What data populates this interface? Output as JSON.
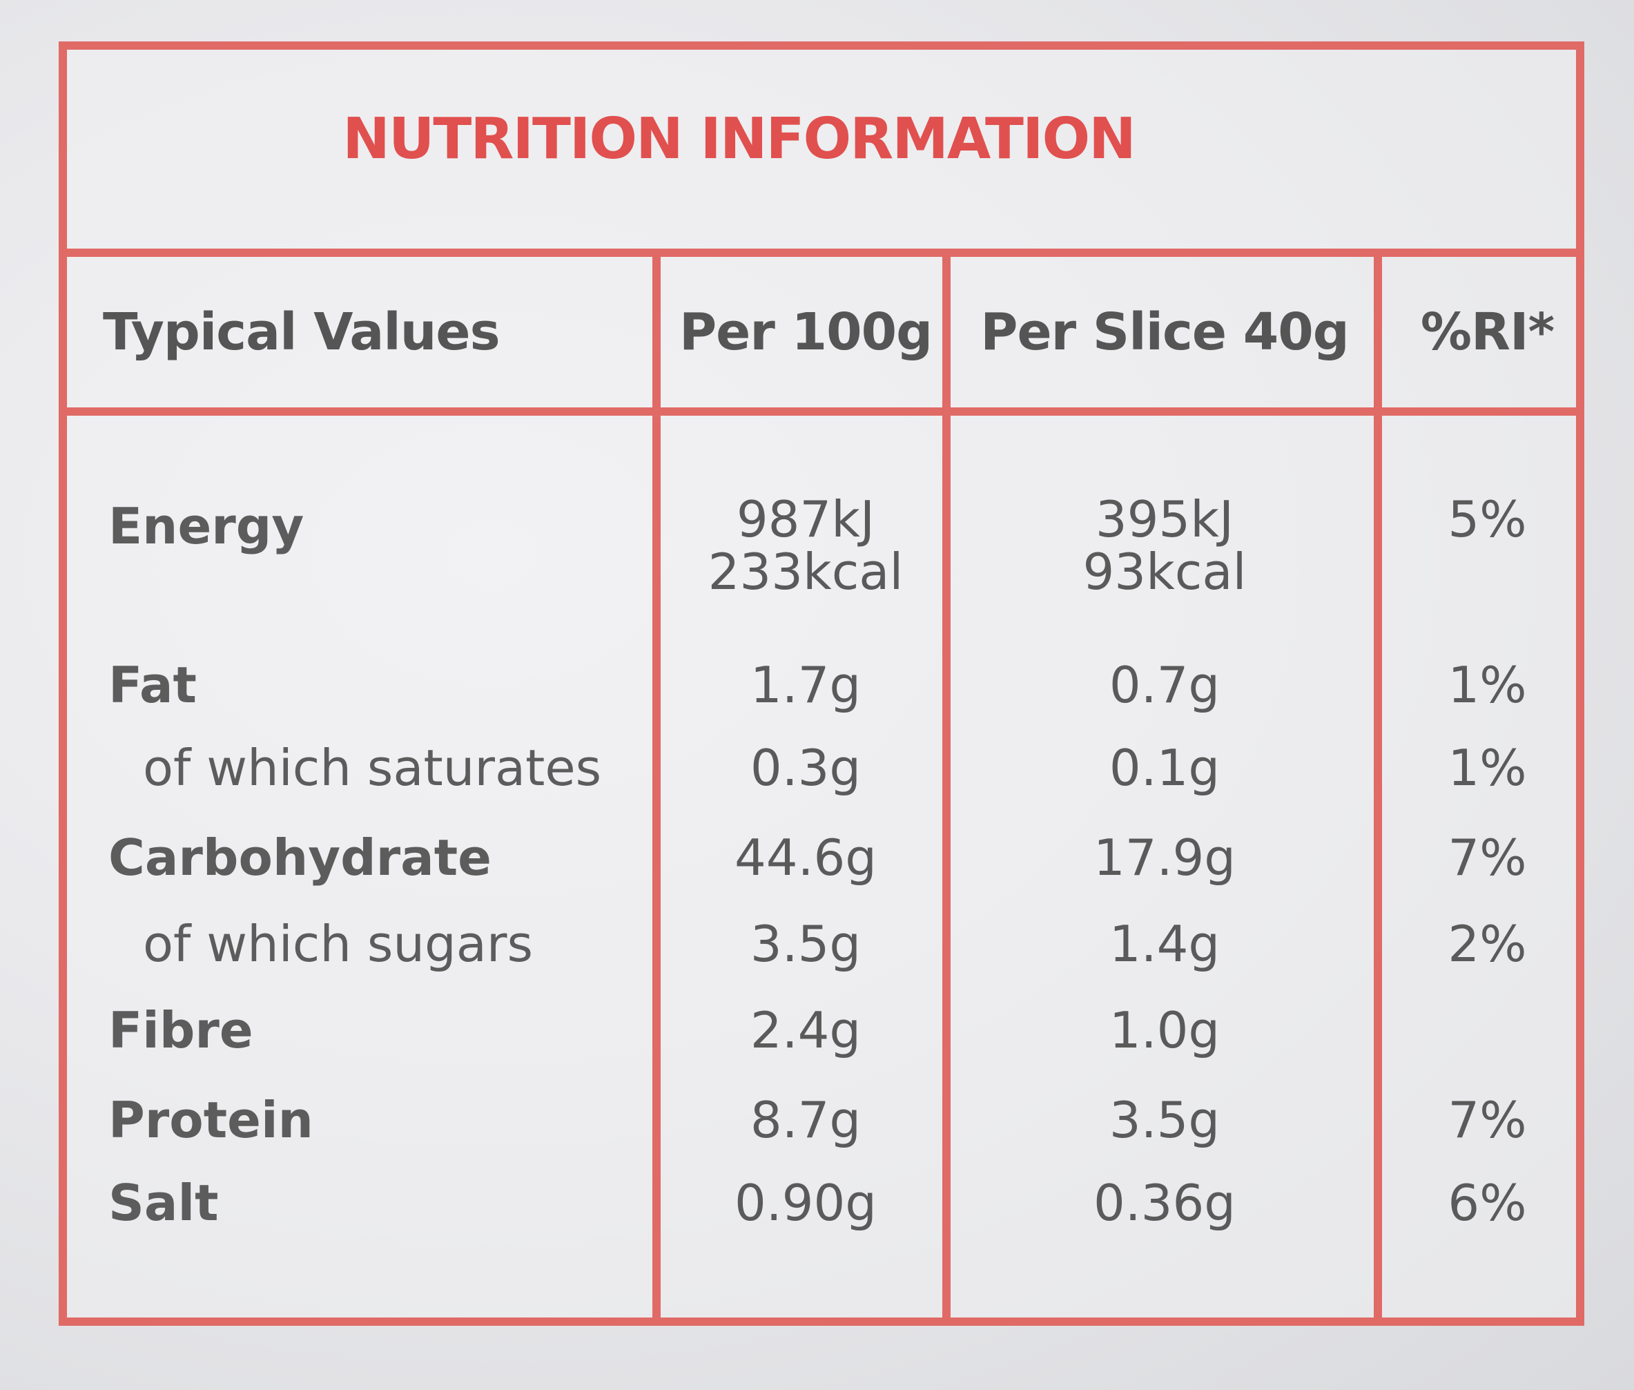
{
  "title": "NUTRITION INFORMATION",
  "headers": {
    "typical": "Typical Values",
    "per100": "Per 100g",
    "perSlice": "Per Slice 40g",
    "ri": "%RI*"
  },
  "rows": [
    {
      "label": "Energy",
      "per100": "987kJ",
      "per100_b": "233kcal",
      "perSlice": "395kJ",
      "perSlice_b": "93kcal",
      "ri": "5%"
    },
    {
      "label": "Fat",
      "per100": "1.7g",
      "perSlice": "0.7g",
      "ri": "1%"
    },
    {
      "label": "of which saturates",
      "per100": "0.3g",
      "perSlice": "0.1g",
      "ri": "1%"
    },
    {
      "label": "Carbohydrate",
      "per100": "44.6g",
      "perSlice": "17.9g",
      "ri": "7%"
    },
    {
      "label": "of which sugars",
      "per100": "3.5g",
      "perSlice": "1.4g",
      "ri": "2%"
    },
    {
      "label": "Fibre",
      "per100": "2.4g",
      "perSlice": "1.0g",
      "ri": ""
    },
    {
      "label": "Protein",
      "per100": "8.7g",
      "perSlice": "3.5g",
      "ri": "7%"
    },
    {
      "label": "Salt",
      "per100": "0.90g",
      "perSlice": "0.36g",
      "ri": "6%"
    }
  ],
  "colors": {
    "border": "#e06a66",
    "title": "#e0504f",
    "text": "#5a5a5a"
  }
}
